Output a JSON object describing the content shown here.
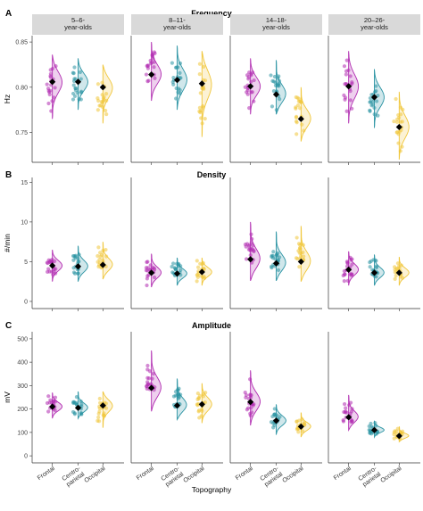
{
  "figure": {
    "x_axis_title": "Topography",
    "categories": [
      "Frontal",
      "Centro-\nparietal",
      "Occipital"
    ],
    "category_colors": [
      "#B02AB0",
      "#2A93A3",
      "#F0C63A"
    ],
    "panels": [
      {
        "letter": "A",
        "title": "Frequency",
        "ylabel": "Hz",
        "yticks": [
          "0.75",
          "0.80",
          "0.85"
        ],
        "facets": [
          "5–6‐\nyear‐olds",
          "8–11‐\nyear‐olds",
          "14–18‐\nyear‐olds",
          "20–26‐\nyear‐olds"
        ]
      },
      {
        "letter": "B",
        "title": "Density",
        "ylabel": "#/min",
        "yticks": [
          "0",
          "5",
          "10",
          "15"
        ]
      },
      {
        "letter": "C",
        "title": "Amplitude",
        "ylabel": "mV",
        "yticks": [
          "0",
          "100",
          "200",
          "300",
          "400",
          "500"
        ]
      }
    ]
  },
  "chart_data": [
    {
      "type": "violin",
      "title": "Frequency",
      "ylabel": "Hz",
      "xlabel": "Topography",
      "ylim": [
        0.717,
        0.857
      ],
      "yticks": [
        0.75,
        0.8,
        0.85
      ],
      "facets": [
        "5–6 year-olds",
        "8–11 year-olds",
        "14–18 year-olds",
        "20–26 year-olds"
      ],
      "categories": [
        "Frontal",
        "Centro-parietal",
        "Occipital"
      ],
      "means": [
        [
          0.806,
          0.806,
          0.8
        ],
        [
          0.814,
          0.808,
          0.804
        ],
        [
          0.801,
          0.792,
          0.765
        ],
        [
          0.801,
          0.789,
          0.756
        ]
      ],
      "ranges": [
        [
          [
            0.765,
            0.836
          ],
          [
            0.775,
            0.832
          ],
          [
            0.76,
            0.825
          ]
        ],
        [
          [
            0.785,
            0.85
          ],
          [
            0.775,
            0.846
          ],
          [
            0.745,
            0.84
          ]
        ],
        [
          [
            0.77,
            0.832
          ],
          [
            0.77,
            0.83
          ],
          [
            0.74,
            0.8
          ]
        ],
        [
          [
            0.76,
            0.84
          ],
          [
            0.755,
            0.82
          ],
          [
            0.72,
            0.795
          ]
        ]
      ]
    },
    {
      "type": "violin",
      "title": "Density",
      "ylabel": "#/min",
      "xlabel": "Topography",
      "ylim": [
        -0.9,
        15.6
      ],
      "yticks": [
        0,
        5,
        10,
        15
      ],
      "facets": [
        "5–6 year-olds",
        "8–11 year-olds",
        "14–18 year-olds",
        "20–26 year-olds"
      ],
      "categories": [
        "Frontal",
        "Centro-parietal",
        "Occipital"
      ],
      "means": [
        [
          4.5,
          4.4,
          4.6
        ],
        [
          3.6,
          3.5,
          3.7
        ],
        [
          5.3,
          4.8,
          5.0
        ],
        [
          4.0,
          3.6,
          3.6
        ]
      ],
      "ranges": [
        [
          [
            2.5,
            6.5
          ],
          [
            2.5,
            7.0
          ],
          [
            2.8,
            7.5
          ]
        ],
        [
          [
            1.8,
            6.0
          ],
          [
            2.0,
            5.5
          ],
          [
            2.0,
            5.5
          ]
        ],
        [
          [
            2.6,
            10.0
          ],
          [
            2.6,
            8.8
          ],
          [
            2.5,
            9.5
          ]
        ],
        [
          [
            2.0,
            6.3
          ],
          [
            2.0,
            5.9
          ],
          [
            2.0,
            5.6
          ]
        ]
      ]
    },
    {
      "type": "violin",
      "title": "Amplitude",
      "ylabel": "mV",
      "xlabel": "Topography",
      "ylim": [
        -30,
        530
      ],
      "yticks": [
        0,
        100,
        200,
        300,
        400,
        500
      ],
      "facets": [
        "5–6 year-olds",
        "8–11 year-olds",
        "14–18 year-olds",
        "20–26 year-olds"
      ],
      "categories": [
        "Frontal",
        "Centro-parietal",
        "Occipital"
      ],
      "means": [
        [
          210,
          205,
          215
        ],
        [
          290,
          215,
          220
        ],
        [
          230,
          150,
          125
        ],
        [
          165,
          110,
          85
        ]
      ],
      "ranges": [
        [
          [
            160,
            270
          ],
          [
            160,
            275
          ],
          [
            120,
            275
          ]
        ],
        [
          [
            190,
            450
          ],
          [
            155,
            330
          ],
          [
            140,
            310
          ]
        ],
        [
          [
            130,
            365
          ],
          [
            90,
            220
          ],
          [
            80,
            185
          ]
        ],
        [
          [
            110,
            260
          ],
          [
            80,
            150
          ],
          [
            60,
            125
          ]
        ]
      ]
    }
  ]
}
